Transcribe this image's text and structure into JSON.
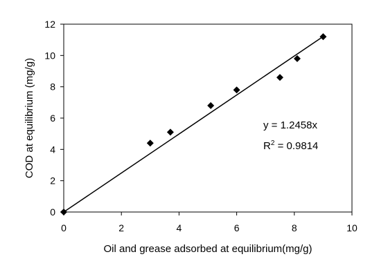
{
  "chart_data": {
    "type": "scatter",
    "xlabel": "Oil and grease adsorbed at equilibrium(mg/g)",
    "ylabel": "COD at equilibrium (mg/g)",
    "xlim": [
      0,
      10
    ],
    "ylim": [
      0,
      12
    ],
    "x_ticks": [
      "0",
      "2",
      "4",
      "6",
      "8",
      "10"
    ],
    "y_ticks": [
      "0",
      "2",
      "4",
      "6",
      "8",
      "10",
      "12"
    ],
    "grid": false,
    "points": [
      {
        "x": 0.0,
        "y": 0.0
      },
      {
        "x": 3.0,
        "y": 4.4
      },
      {
        "x": 3.7,
        "y": 5.1
      },
      {
        "x": 5.1,
        "y": 6.8
      },
      {
        "x": 6.0,
        "y": 7.8
      },
      {
        "x": 7.5,
        "y": 8.6
      },
      {
        "x": 8.1,
        "y": 9.8
      },
      {
        "x": 9.0,
        "y": 11.2
      }
    ],
    "trendline": {
      "slope": 1.2458,
      "intercept": 0,
      "x_range": [
        0,
        9
      ]
    },
    "annotations": {
      "equation": "y = 1.2458x",
      "r2_prefix": "R",
      "r2_sup": "2",
      "r2_value": " = 0.9814"
    }
  }
}
